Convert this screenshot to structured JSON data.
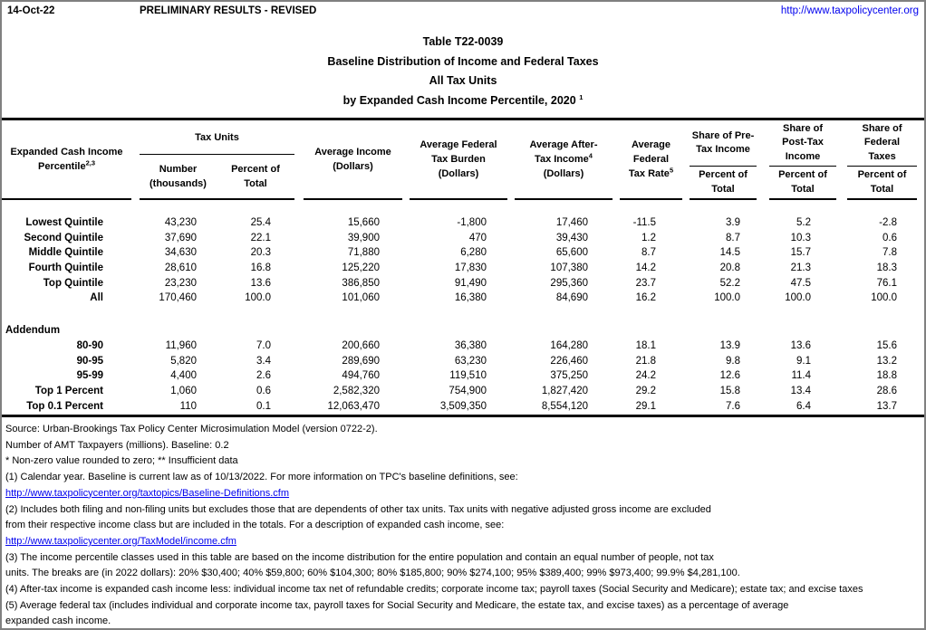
{
  "colors": {
    "link": "#0000ee",
    "rule": "#000000",
    "border": "#808080",
    "text": "#000000"
  },
  "topbar": {
    "date": "14-Oct-22",
    "status": "PRELIMINARY RESULTS - REVISED",
    "url": "http://www.taxpolicycenter.org"
  },
  "title": {
    "line1": "Table T22-0039",
    "line2": "Baseline Distribution of Income and Federal Taxes",
    "line3": "All Tax Units",
    "line4": "by Expanded Cash Income Percentile, 2020",
    "line4_superscript": "1"
  },
  "table": {
    "headers": {
      "col_label_line1": "Expanded Cash Income",
      "col_label_line2": "Percentile",
      "col_label_sup": "2,3",
      "tax_units_group": "Tax Units",
      "number_line1": "Number",
      "number_line2": "(thousands)",
      "percent_line1": "Percent of",
      "percent_line2": "Total",
      "avg_income_line1": "Average Income",
      "avg_income_line2": "(Dollars)",
      "avg_burden_line1": "Average Federal",
      "avg_burden_line2": "Tax Burden",
      "avg_burden_line3": "(Dollars)",
      "avg_aftertax_line1": "Average After-",
      "avg_aftertax_line2": "Tax Income",
      "avg_aftertax_sup": "4",
      "avg_aftertax_line3": "(Dollars)",
      "avg_rate_line1": "Average",
      "avg_rate_line2": "Federal",
      "avg_rate_line3": "Tax Rate",
      "avg_rate_sup": "5",
      "share_pretax_line1": "Share of Pre-",
      "share_pretax_line2": "Tax Income",
      "share_posttax_line1": "Share of",
      "share_posttax_line2": "Post-Tax",
      "share_posttax_line3": "Income",
      "share_fedtax_line1": "Share of",
      "share_fedtax_line2": "Federal",
      "share_fedtax_line3": "Taxes",
      "pct_total_line1": "Percent of",
      "pct_total_line2": "Total"
    },
    "rows": [
      [
        "Lowest Quintile",
        "43,230",
        "25.4",
        "15,660",
        "-1,800",
        "17,460",
        "-11.5",
        "3.9",
        "5.2",
        "-2.8"
      ],
      [
        "Second Quintile",
        "37,690",
        "22.1",
        "39,900",
        "470",
        "39,430",
        "1.2",
        "8.7",
        "10.3",
        "0.6"
      ],
      [
        "Middle Quintile",
        "34,630",
        "20.3",
        "71,880",
        "6,280",
        "65,600",
        "8.7",
        "14.5",
        "15.7",
        "7.8"
      ],
      [
        "Fourth Quintile",
        "28,610",
        "16.8",
        "125,220",
        "17,830",
        "107,380",
        "14.2",
        "20.8",
        "21.3",
        "18.3"
      ],
      [
        "Top Quintile",
        "23,230",
        "13.6",
        "386,850",
        "91,490",
        "295,360",
        "23.7",
        "52.2",
        "47.5",
        "76.1"
      ],
      [
        "All",
        "170,460",
        "100.0",
        "101,060",
        "16,380",
        "84,690",
        "16.2",
        "100.0",
        "100.0",
        "100.0"
      ]
    ],
    "addendum_label": "Addendum",
    "addendum_rows": [
      [
        "80-90",
        "11,960",
        "7.0",
        "200,660",
        "36,380",
        "164,280",
        "18.1",
        "13.9",
        "13.6",
        "15.6"
      ],
      [
        "90-95",
        "5,820",
        "3.4",
        "289,690",
        "63,230",
        "226,460",
        "21.8",
        "9.8",
        "9.1",
        "13.2"
      ],
      [
        "95-99",
        "4,400",
        "2.6",
        "494,760",
        "119,510",
        "375,250",
        "24.2",
        "12.6",
        "11.4",
        "18.8"
      ],
      [
        "Top 1 Percent",
        "1,060",
        "0.6",
        "2,582,320",
        "754,900",
        "1,827,420",
        "29.2",
        "15.8",
        "13.4",
        "28.6"
      ],
      [
        "Top 0.1 Percent",
        "110",
        "0.1",
        "12,063,470",
        "3,509,350",
        "8,554,120",
        "29.1",
        "7.6",
        "6.4",
        "13.7"
      ]
    ]
  },
  "footnotes": [
    {
      "kind": "text",
      "text": "Source: Urban-Brookings Tax Policy Center Microsimulation Model (version 0722-2)."
    },
    {
      "kind": "text",
      "text": "Number of AMT Taxpayers (millions).  Baseline: 0.2"
    },
    {
      "kind": "text",
      "text": "* Non-zero value rounded to zero; ** Insufficient data"
    },
    {
      "kind": "text",
      "text": "(1) Calendar year. Baseline is current law as of 10/13/2022. For more information on TPC's baseline definitions, see:"
    },
    {
      "kind": "link",
      "text": "http://www.taxpolicycenter.org/taxtopics/Baseline-Definitions.cfm"
    },
    {
      "kind": "text",
      "text": "(2) Includes both filing and non-filing units but excludes those that are dependents of other tax units. Tax units with negative adjusted gross income are excluded"
    },
    {
      "kind": "text",
      "text": "from their respective income class but are included in the totals. For a description of expanded cash income, see:"
    },
    {
      "kind": "link",
      "text": "http://www.taxpolicycenter.org/TaxModel/income.cfm"
    },
    {
      "kind": "text",
      "text": "(3) The income percentile classes used in this table are based on the income distribution for the entire population and contain an equal number of people, not tax"
    },
    {
      "kind": "text",
      "text": "units. The breaks are (in 2022 dollars): 20% $30,400; 40% $59,800; 60% $104,300; 80% $185,800; 90% $274,100; 95% $389,400; 99% $973,400; 99.9% $4,281,100."
    },
    {
      "kind": "text",
      "text": "(4) After-tax income is expanded cash income less: individual income tax net of refundable credits; corporate income tax; payroll taxes (Social Security and Medicare); estate tax; and excise taxes"
    },
    {
      "kind": "text",
      "text": "(5) Average federal tax (includes individual and corporate income tax, payroll taxes for Social Security and Medicare, the estate tax, and excise taxes) as a percentage of average"
    },
    {
      "kind": "text",
      "text": "expanded cash income."
    }
  ]
}
